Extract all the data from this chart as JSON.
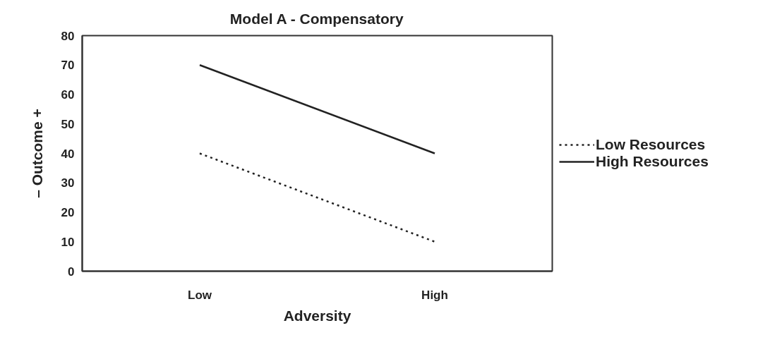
{
  "chart_data": {
    "type": "line",
    "title": "Model A - Compensatory",
    "xlabel": "Adversity",
    "ylabel": "– Outcome +",
    "categories": [
      "Low",
      "High"
    ],
    "series": [
      {
        "name": "Low Resources",
        "color": "#222222",
        "values": [
          40,
          10
        ],
        "line_style": "dotted"
      },
      {
        "name": "High Resources",
        "color": "#222222",
        "values": [
          70,
          40
        ],
        "line_style": "solid"
      }
    ],
    "ylim": [
      0,
      80
    ],
    "yticks": [
      0,
      10,
      20,
      30,
      40,
      50,
      60,
      70,
      80
    ],
    "grid": false,
    "legend": "right"
  }
}
